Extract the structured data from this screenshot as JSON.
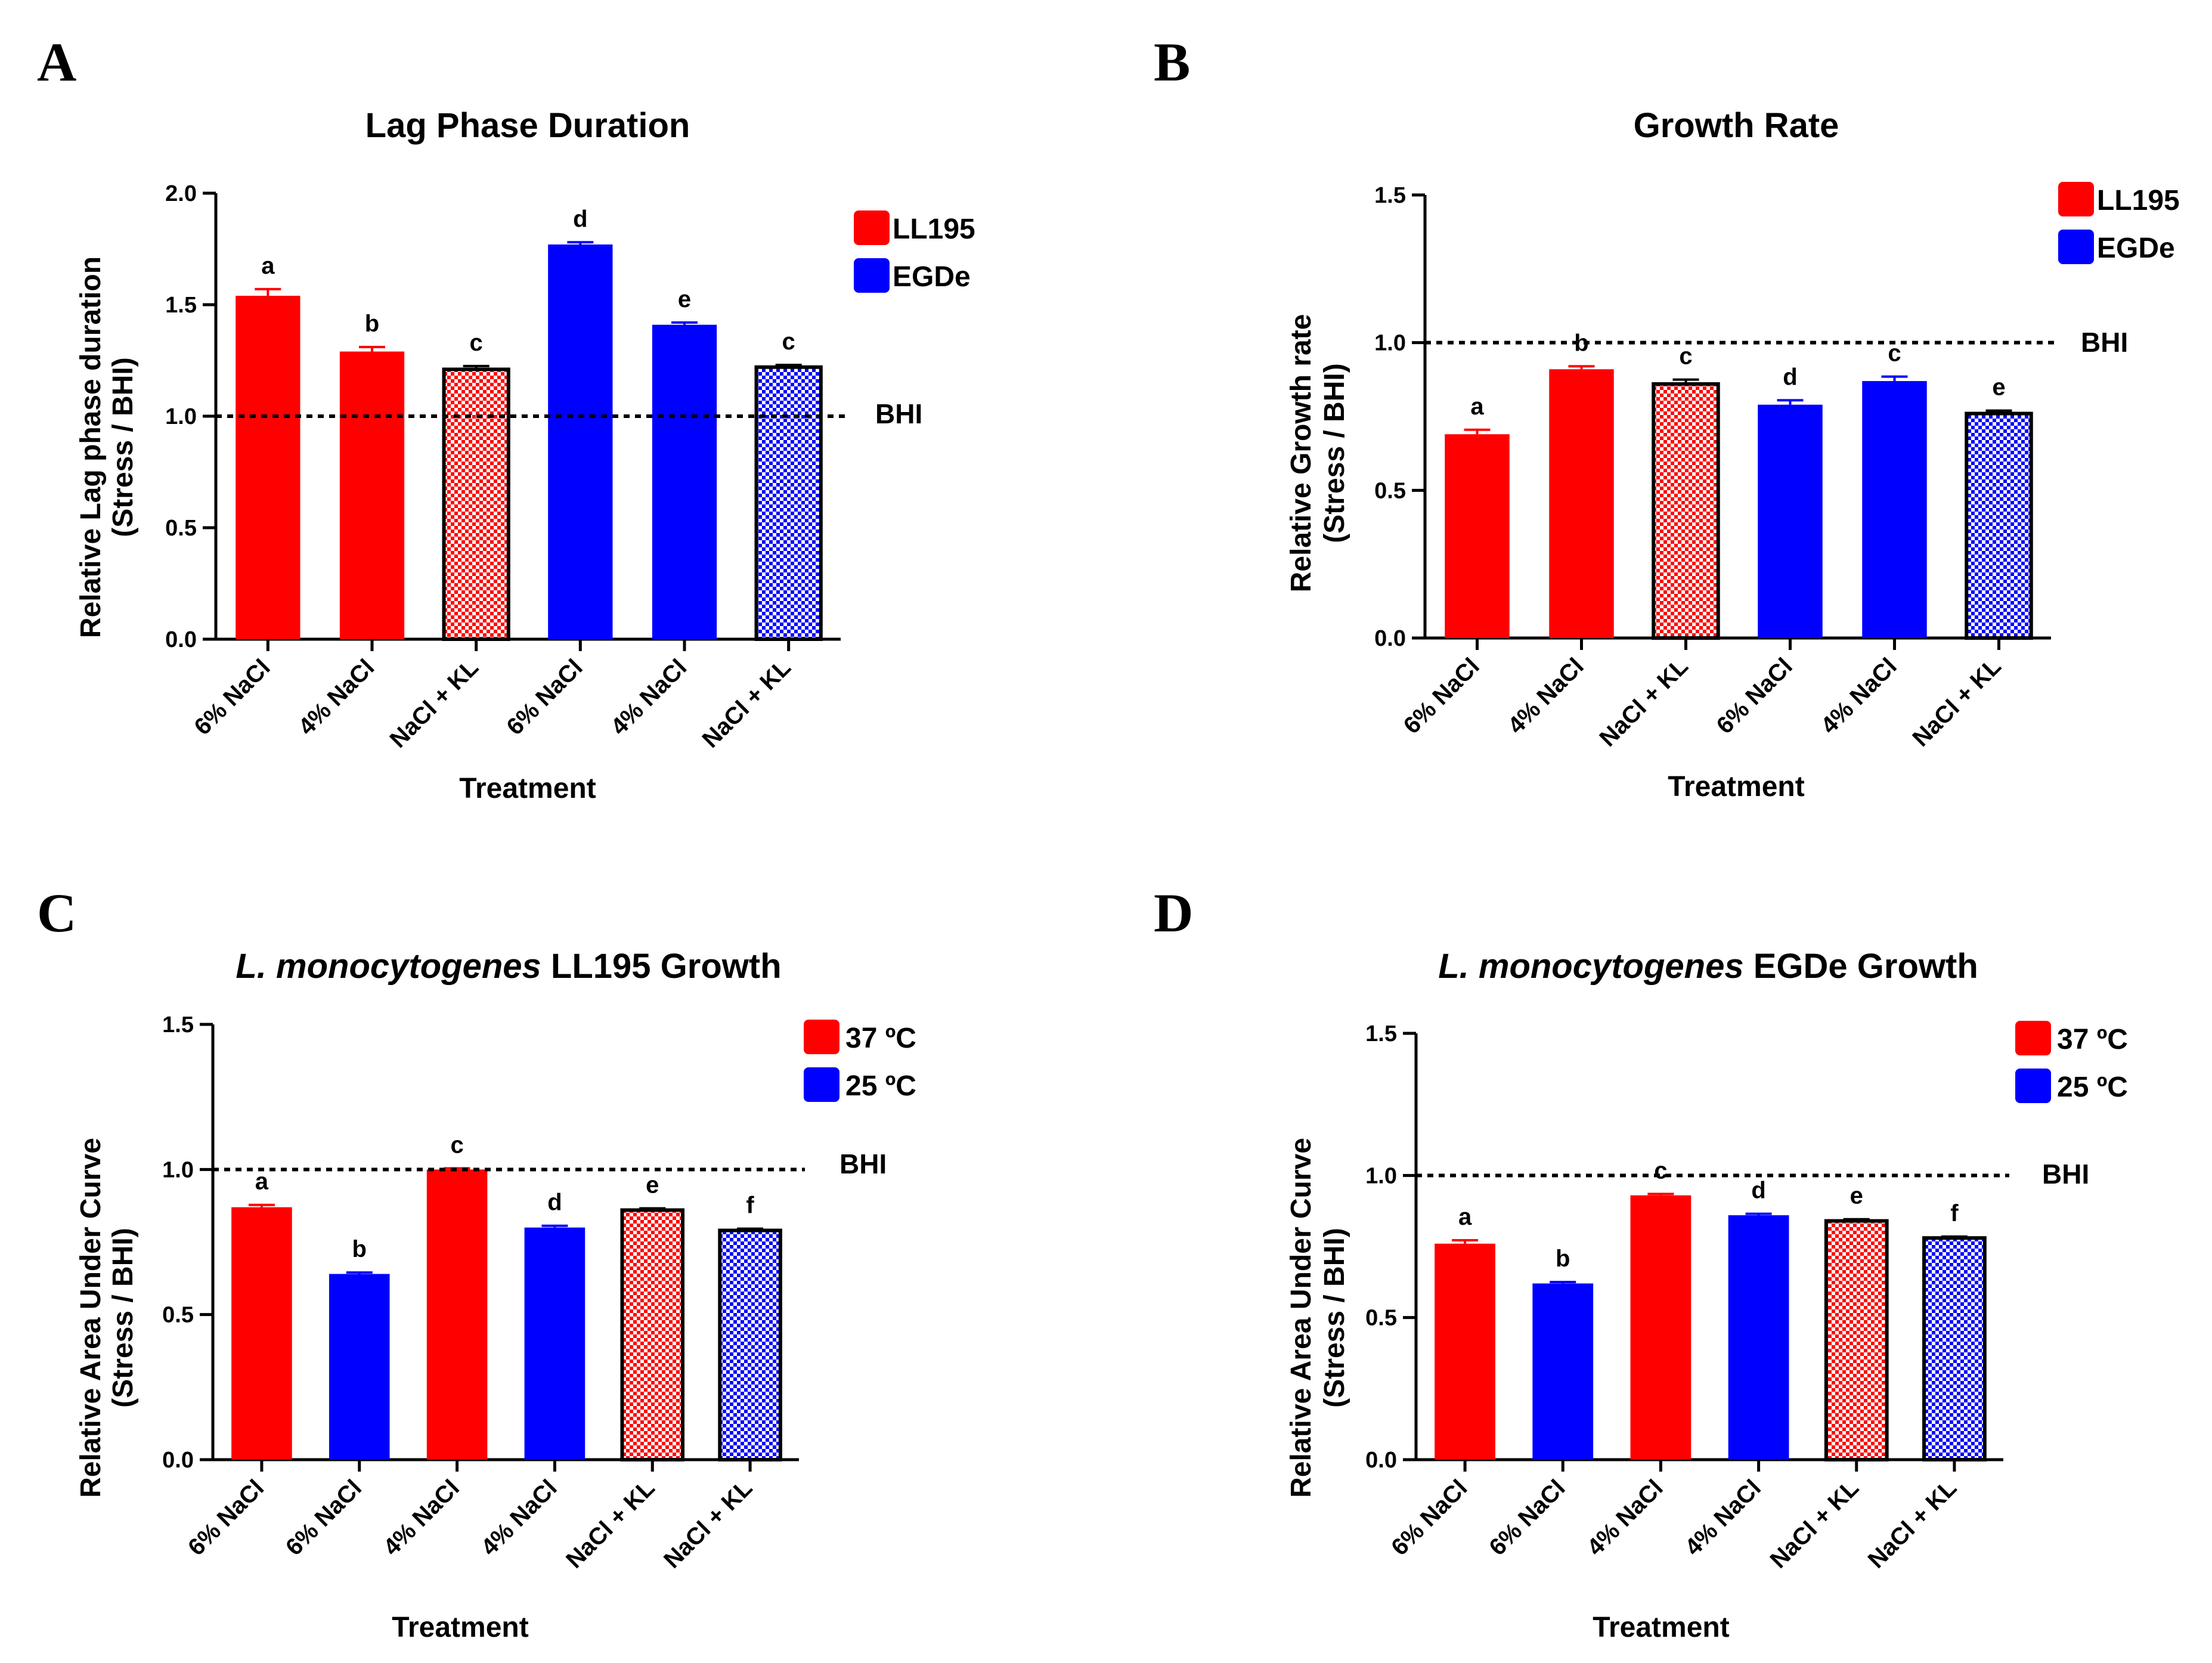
{
  "chart_data": [
    {
      "panel": "A",
      "type": "bar",
      "title": "Lag Phase Duration",
      "title_prefix": "",
      "xlabel": "Treatment",
      "ylabel": [
        "Relative Lag phase duration",
        "(Stress / BHI)"
      ],
      "ylim": [
        0,
        2.0
      ],
      "yticks": [
        0.0,
        0.5,
        1.0,
        1.5,
        2.0
      ],
      "ytick_labels": [
        "0.0",
        "0.5",
        "1.0",
        "1.5",
        "2.0"
      ],
      "categories": [
        "6% NaCl",
        "4% NaCl",
        "NaCl + KL",
        "6% NaCl",
        "4% NaCl",
        "NaCl + KL"
      ],
      "values": [
        1.54,
        1.29,
        1.21,
        1.77,
        1.41,
        1.22
      ],
      "errors": [
        0.03,
        0.02,
        0.015,
        0.01,
        0.01,
        0.01
      ],
      "significance": [
        "a",
        "b",
        "c",
        "d",
        "e",
        "c"
      ],
      "series_index": [
        0,
        0,
        0,
        1,
        1,
        1
      ],
      "patterned": [
        false,
        false,
        true,
        false,
        false,
        true
      ],
      "reference_line": {
        "value": 1.0,
        "label": "BHI"
      },
      "legend": [
        {
          "label": "LL195",
          "color": "#ff0000"
        },
        {
          "label": "EGDe",
          "color": "#0000ff"
        }
      ]
    },
    {
      "panel": "B",
      "type": "bar",
      "title": "Growth Rate",
      "title_prefix": "",
      "xlabel": "Treatment",
      "ylabel": [
        "Relative Growth rate",
        "(Stress / BHI)"
      ],
      "ylim": [
        0,
        1.5
      ],
      "yticks": [
        0.0,
        0.5,
        1.0,
        1.5
      ],
      "ytick_labels": [
        "0.0",
        "0.5",
        "1.0",
        "1.5"
      ],
      "categories": [
        "6% NaCl",
        "4% NaCl",
        "NaCl + KL",
        "6% NaCl",
        "4% NaCl",
        "NaCl + KL"
      ],
      "values": [
        0.69,
        0.91,
        0.86,
        0.79,
        0.87,
        0.76
      ],
      "errors": [
        0.015,
        0.01,
        0.015,
        0.015,
        0.015,
        0.01
      ],
      "significance": [
        "a",
        "b",
        "c",
        "d",
        "c",
        "e"
      ],
      "series_index": [
        0,
        0,
        0,
        1,
        1,
        1
      ],
      "patterned": [
        false,
        false,
        true,
        false,
        false,
        true
      ],
      "reference_line": {
        "value": 1.0,
        "label": "BHI"
      },
      "legend": [
        {
          "label": "LL195",
          "color": "#ff0000"
        },
        {
          "label": "EGDe",
          "color": "#0000ff"
        }
      ]
    },
    {
      "panel": "C",
      "type": "bar",
      "title": "LL195 Growth",
      "title_prefix": "L. monocytogenes",
      "xlabel": "Treatment",
      "ylabel": [
        "Relative Area Under Curve",
        "(Stress / BHI)"
      ],
      "ylim": [
        0,
        1.5
      ],
      "yticks": [
        0.0,
        0.5,
        1.0,
        1.5
      ],
      "ytick_labels": [
        "0.0",
        "0.5",
        "1.0",
        "1.5"
      ],
      "categories": [
        "6% NaCl",
        "6% NaCl",
        "4% NaCl",
        "4% NaCl",
        "NaCl + KL",
        "NaCl + KL"
      ],
      "values": [
        0.87,
        0.64,
        1.0,
        0.8,
        0.86,
        0.79
      ],
      "errors": [
        0.008,
        0.005,
        0.004,
        0.006,
        0.006,
        0.006
      ],
      "significance": [
        "a",
        "b",
        "c",
        "d",
        "e",
        "f"
      ],
      "series_index": [
        0,
        1,
        0,
        1,
        0,
        1
      ],
      "patterned": [
        false,
        false,
        false,
        false,
        true,
        true
      ],
      "reference_line": {
        "value": 1.0,
        "label": "BHI"
      },
      "legend": [
        {
          "label": "37 ºC",
          "color": "#ff0000"
        },
        {
          "label": "25 ºC",
          "color": "#0000ff"
        }
      ]
    },
    {
      "panel": "D",
      "type": "bar",
      "title": "EGDe Growth",
      "title_prefix": "L. monocytogenes",
      "xlabel": "Treatment",
      "ylabel": [
        "Relative Area Under Curve",
        "(Stress / BHI)"
      ],
      "ylim": [
        0,
        1.5
      ],
      "yticks": [
        0.0,
        0.5,
        1.0,
        1.5
      ],
      "ytick_labels": [
        "0.0",
        "0.5",
        "1.0",
        "1.5"
      ],
      "categories": [
        "6% NaCl",
        "6% NaCl",
        "4% NaCl",
        "4% NaCl",
        "NaCl + KL",
        "NaCl + KL"
      ],
      "values": [
        0.76,
        0.62,
        0.93,
        0.86,
        0.84,
        0.78
      ],
      "errors": [
        0.012,
        0.005,
        0.005,
        0.005,
        0.006,
        0.005
      ],
      "significance": [
        "a",
        "b",
        "c",
        "d",
        "e",
        "f"
      ],
      "series_index": [
        0,
        1,
        0,
        1,
        0,
        1
      ],
      "patterned": [
        false,
        false,
        false,
        false,
        true,
        true
      ],
      "reference_line": {
        "value": 1.0,
        "label": "BHI"
      },
      "legend": [
        {
          "label": "37 ºC",
          "color": "#ff0000"
        },
        {
          "label": "25 ºC",
          "color": "#0000ff"
        }
      ]
    }
  ],
  "colors": {
    "red": "#ff0000",
    "blue": "#0000ff"
  }
}
